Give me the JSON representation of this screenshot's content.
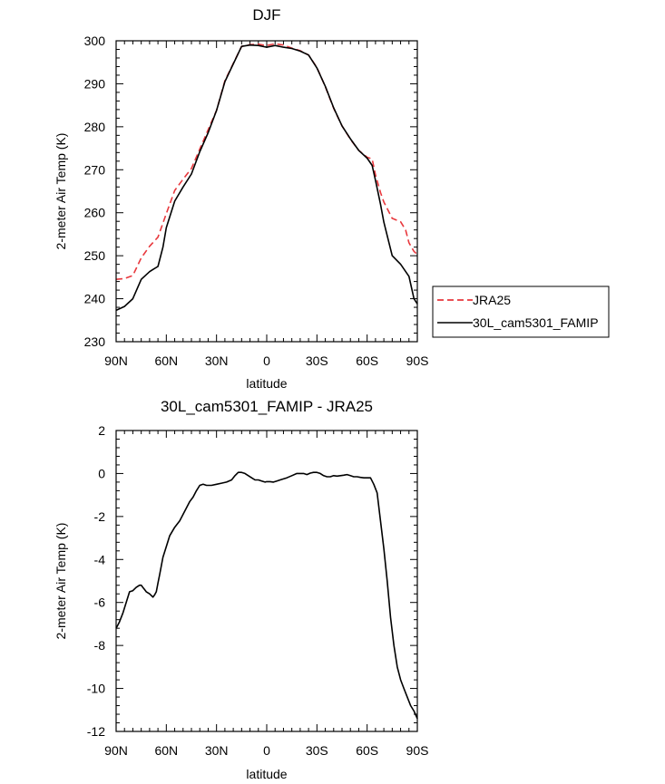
{
  "chart_data": [
    {
      "type": "line",
      "title": "DJF",
      "xlabel": "latitude",
      "ylabel": "2-meter Air Temp (K)",
      "xlim": [
        90,
        -90
      ],
      "ylim": [
        230,
        300
      ],
      "x_ticks": [
        {
          "value": 90,
          "label": "90N"
        },
        {
          "value": 60,
          "label": "60N"
        },
        {
          "value": 30,
          "label": "30N"
        },
        {
          "value": 0,
          "label": "0"
        },
        {
          "value": -30,
          "label": "30S"
        },
        {
          "value": -60,
          "label": "60S"
        },
        {
          "value": -90,
          "label": "90S"
        }
      ],
      "y_ticks": [
        230,
        240,
        250,
        260,
        270,
        280,
        290,
        300
      ],
      "legend_position": "right",
      "series": [
        {
          "name": "JRA25",
          "color": "#e8383d",
          "dash": "dashed",
          "x": [
            90,
            85,
            80,
            75,
            70,
            65,
            60,
            55,
            50,
            45,
            40,
            35,
            30,
            25,
            20,
            15,
            10,
            5,
            0,
            -5,
            -10,
            -15,
            -20,
            -25,
            -30,
            -35,
            -40,
            -45,
            -50,
            -55,
            -60,
            -63,
            -65,
            -68,
            -70,
            -75,
            -80,
            -83,
            -85,
            -88,
            -90
          ],
          "y": [
            244.5,
            244.7,
            245.4,
            249.5,
            252.2,
            254.3,
            259.8,
            265.2,
            267.8,
            270.3,
            274.8,
            279.3,
            283.8,
            290.7,
            294.7,
            298.7,
            299.1,
            299.2,
            298.9,
            299.3,
            299.0,
            298.3,
            297.7,
            296.7,
            293.8,
            289.3,
            284.3,
            280.2,
            277.1,
            274.5,
            272.9,
            272.5,
            268.8,
            264.7,
            262.5,
            258.7,
            257.9,
            256.0,
            253.0,
            251.0,
            250.3
          ]
        },
        {
          "name": "30L_cam5301_FAMIP",
          "color": "#000000",
          "dash": "solid",
          "x": [
            90,
            85,
            80,
            75,
            70,
            68,
            65,
            62,
            60,
            55,
            50,
            45,
            40,
            35,
            30,
            25,
            20,
            15,
            10,
            5,
            0,
            -5,
            -10,
            -15,
            -20,
            -25,
            -30,
            -35,
            -40,
            -45,
            -50,
            -55,
            -60,
            -63,
            -65,
            -68,
            -70,
            -75,
            -80,
            -85,
            -88,
            -90
          ],
          "y": [
            237.3,
            238.2,
            240.0,
            244.5,
            246.3,
            246.8,
            247.5,
            252.0,
            256.5,
            262.7,
            266.0,
            269.0,
            274.2,
            278.6,
            283.8,
            290.5,
            294.6,
            298.7,
            299.0,
            298.9,
            298.5,
            298.9,
            298.5,
            298.2,
            297.6,
            296.7,
            293.7,
            289.4,
            284.4,
            280.2,
            277.2,
            274.5,
            272.7,
            271.0,
            267.5,
            262.0,
            257.8,
            250.0,
            248.0,
            245.2,
            240.0,
            238.8
          ]
        }
      ]
    },
    {
      "type": "line",
      "title": "30L_cam5301_FAMIP - JRA25",
      "xlabel": "latitude",
      "ylabel": "2-meter Air Temp (K)",
      "xlim": [
        90,
        -90
      ],
      "ylim": [
        -12,
        2
      ],
      "x_ticks": [
        {
          "value": 90,
          "label": "90N"
        },
        {
          "value": 60,
          "label": "60N"
        },
        {
          "value": 30,
          "label": "30N"
        },
        {
          "value": 0,
          "label": "0"
        },
        {
          "value": -30,
          "label": "30S"
        },
        {
          "value": -60,
          "label": "60S"
        },
        {
          "value": -90,
          "label": "90S"
        }
      ],
      "y_ticks": [
        -12,
        -10,
        -8,
        -6,
        -4,
        -2,
        0,
        2
      ],
      "series": [
        {
          "color": "#000000",
          "dash": "solid",
          "x": [
            90,
            88,
            86,
            84,
            82,
            80,
            78,
            76,
            75,
            74,
            73,
            72,
            70,
            68,
            67,
            66,
            65,
            64,
            63,
            62,
            60,
            58,
            55,
            52,
            50,
            48,
            46,
            44,
            42,
            40,
            38,
            36,
            33,
            30,
            27,
            24,
            21,
            19,
            17,
            15,
            13,
            11,
            9,
            7,
            5,
            3,
            1,
            0,
            -2,
            -4,
            -6,
            -8,
            -10,
            -12,
            -15,
            -18,
            -20,
            -22,
            -24,
            -26,
            -28,
            -30,
            -32,
            -34,
            -36,
            -38,
            -40,
            -42,
            -44,
            -46,
            -48,
            -50,
            -52,
            -54,
            -56,
            -58,
            -60,
            -62,
            -64,
            -66,
            -68,
            -70,
            -72,
            -74,
            -76,
            -78,
            -80,
            -82,
            -84,
            -86,
            -88,
            -90
          ],
          "y": [
            -7.2,
            -6.9,
            -6.5,
            -6.0,
            -5.5,
            -5.45,
            -5.3,
            -5.2,
            -5.2,
            -5.3,
            -5.4,
            -5.5,
            -5.6,
            -5.75,
            -5.65,
            -5.5,
            -5.1,
            -4.7,
            -4.3,
            -3.9,
            -3.4,
            -2.9,
            -2.5,
            -2.2,
            -1.9,
            -1.6,
            -1.3,
            -1.1,
            -0.8,
            -0.55,
            -0.5,
            -0.55,
            -0.55,
            -0.5,
            -0.45,
            -0.4,
            -0.3,
            -0.1,
            0.05,
            0.05,
            0.0,
            -0.1,
            -0.2,
            -0.3,
            -0.3,
            -0.35,
            -0.4,
            -0.38,
            -0.38,
            -0.4,
            -0.35,
            -0.3,
            -0.25,
            -0.2,
            -0.1,
            0.0,
            0.0,
            0.0,
            -0.05,
            0.02,
            0.05,
            0.05,
            0.0,
            -0.1,
            -0.15,
            -0.15,
            -0.1,
            -0.12,
            -0.1,
            -0.08,
            -0.05,
            -0.1,
            -0.15,
            -0.15,
            -0.18,
            -0.2,
            -0.2,
            -0.2,
            -0.5,
            -0.9,
            -2.2,
            -3.5,
            -5.0,
            -6.7,
            -8.0,
            -9.0,
            -9.6,
            -10.0,
            -10.4,
            -10.8,
            -11.05,
            -11.4
          ]
        }
      ]
    }
  ]
}
